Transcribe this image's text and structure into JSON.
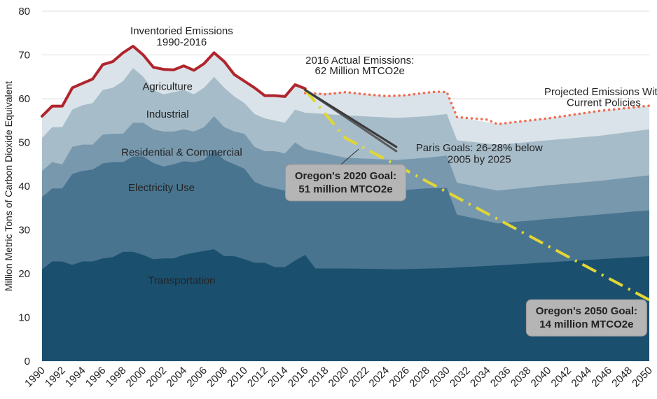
{
  "chart_data": {
    "type": "area",
    "title": "",
    "xlabel": "",
    "ylabel": "Million Metric Tons of Carbon Dioxide Equivalent",
    "xlim": [
      1990,
      2050
    ],
    "ylim": [
      0,
      80
    ],
    "yticks": [
      0,
      10,
      20,
      30,
      40,
      50,
      60,
      70,
      80
    ],
    "xticks": [
      1990,
      1992,
      1994,
      1996,
      1998,
      2000,
      2002,
      2004,
      2006,
      2008,
      2010,
      2012,
      2014,
      2016,
      2018,
      2020,
      2022,
      2024,
      2026,
      2028,
      2030,
      2032,
      2034,
      2036,
      2038,
      2040,
      2042,
      2044,
      2046,
      2048,
      2050
    ],
    "grid": true,
    "stacked_cumulative_series": [
      {
        "name": "Transportation",
        "color": "#1b4f6e",
        "x": [
          1990,
          1991,
          1992,
          1993,
          1994,
          1995,
          1996,
          1997,
          1998,
          1999,
          2000,
          2001,
          2002,
          2003,
          2004,
          2005,
          2006,
          2007,
          2008,
          2009,
          2010,
          2011,
          2012,
          2013,
          2014,
          2015,
          2016,
          2017,
          2020,
          2025,
          2030,
          2035,
          2040,
          2045,
          2050
        ],
        "values": [
          21,
          22.8,
          22.8,
          22,
          22.8,
          22.8,
          23.5,
          23.8,
          25,
          25,
          24.3,
          23.3,
          23.5,
          23.5,
          24.3,
          24.8,
          25.2,
          25.6,
          24,
          24,
          23.3,
          22.5,
          22.5,
          21.5,
          21.5,
          23,
          24.3,
          21.2,
          21.2,
          21,
          21.3,
          21.9,
          22.6,
          23.3,
          24
        ]
      },
      {
        "name": "Electricity Use",
        "color": "#48748f",
        "x": [
          1990,
          1991,
          1992,
          1993,
          1994,
          1995,
          1996,
          1997,
          1998,
          1999,
          2000,
          2001,
          2002,
          2003,
          2004,
          2005,
          2006,
          2007,
          2008,
          2009,
          2010,
          2011,
          2012,
          2013,
          2014,
          2015,
          2016,
          2020,
          2025,
          2028,
          2030,
          2031,
          2035,
          2040,
          2045,
          2050
        ],
        "values": [
          37.5,
          39.5,
          39.5,
          42.8,
          43.5,
          43.8,
          45.2,
          45.5,
          45.5,
          46.8,
          46.8,
          45.3,
          44.5,
          45,
          45.7,
          45.5,
          46,
          48.2,
          46,
          45,
          44,
          41,
          40,
          39.5,
          39,
          39.5,
          39.5,
          39.3,
          39,
          39.5,
          39.6,
          33.5,
          31.5,
          32.5,
          33.5,
          34.5
        ]
      },
      {
        "name": "Residential & Commercial",
        "color": "#7898ad",
        "x": [
          1990,
          1991,
          1992,
          1993,
          1994,
          1995,
          1996,
          1997,
          1998,
          1999,
          2000,
          2001,
          2002,
          2003,
          2004,
          2005,
          2006,
          2007,
          2008,
          2009,
          2010,
          2011,
          2012,
          2013,
          2014,
          2015,
          2016,
          2020,
          2025,
          2028,
          2030,
          2031,
          2035,
          2040,
          2045,
          2050
        ],
        "values": [
          43.5,
          45.5,
          45,
          49,
          49.5,
          49.5,
          51.8,
          52,
          52,
          54.5,
          54.5,
          53,
          52.5,
          52.5,
          53,
          52.5,
          53.5,
          56,
          53.5,
          52.5,
          52,
          49,
          48,
          48,
          47.5,
          50,
          48.5,
          46.5,
          46,
          46.5,
          47,
          40.8,
          39,
          40.2,
          41.2,
          42.5
        ]
      },
      {
        "name": "Industrial",
        "color": "#a7bcc9",
        "x": [
          1990,
          1991,
          1992,
          1993,
          1994,
          1995,
          1996,
          1997,
          1998,
          1999,
          2000,
          2001,
          2002,
          2003,
          2004,
          2005,
          2006,
          2007,
          2008,
          2009,
          2010,
          2011,
          2012,
          2013,
          2014,
          2015,
          2016,
          2020,
          2025,
          2028,
          2030,
          2031,
          2035,
          2040,
          2045,
          2050
        ],
        "values": [
          51,
          53.5,
          53.5,
          57.5,
          58.5,
          59,
          62,
          62.5,
          64,
          67,
          65,
          62,
          61,
          61.5,
          62,
          61,
          62.5,
          65,
          62.5,
          60.5,
          59,
          56.5,
          55.5,
          55,
          54.5,
          57.5,
          56.8,
          56.2,
          55.6,
          56,
          56.5,
          50.5,
          49.5,
          50.5,
          51.5,
          53
        ]
      },
      {
        "name": "Agriculture",
        "color": "#d9e3e9",
        "x": [
          1990,
          1991,
          1992,
          1993,
          1994,
          1995,
          1996,
          1997,
          1998,
          1999,
          2000,
          2001,
          2002,
          2003,
          2004,
          2005,
          2006,
          2007,
          2008,
          2009,
          2010,
          2011,
          2012,
          2013,
          2014,
          2015,
          2016,
          2017,
          2020,
          2024,
          2026,
          2028,
          2029,
          2030,
          2031,
          2035,
          2040,
          2045,
          2050
        ],
        "values": [
          56,
          58.3,
          58.3,
          62.5,
          63.5,
          64.5,
          67.8,
          68.5,
          70.5,
          72,
          70,
          67.2,
          66.7,
          66.6,
          67.5,
          66.5,
          68,
          70.5,
          68.5,
          65.5,
          64,
          62.5,
          60.7,
          60.7,
          60.5,
          63.2,
          62.3,
          61.2,
          61.5,
          60.6,
          60.8,
          61.4,
          61.6,
          61.5,
          55.8,
          54.2,
          55.5,
          57.2,
          58.4
        ]
      }
    ],
    "lines": [
      {
        "name": "Inventoried Emissions 1990-2016",
        "color": "#b0252d",
        "style": "solid",
        "x": [
          1990,
          1991,
          1992,
          1993,
          1994,
          1995,
          1996,
          1997,
          1998,
          1999,
          2000,
          2001,
          2002,
          2003,
          2004,
          2005,
          2006,
          2007,
          2008,
          2009,
          2010,
          2011,
          2012,
          2013,
          2014,
          2015,
          2016
        ],
        "values": [
          56,
          58.3,
          58.3,
          62.5,
          63.5,
          64.5,
          67.8,
          68.5,
          70.5,
          72,
          70,
          67.2,
          66.7,
          66.6,
          67.5,
          66.5,
          68,
          70.5,
          68.5,
          65.5,
          64,
          62.5,
          60.7,
          60.7,
          60.5,
          63.2,
          62.3
        ]
      },
      {
        "name": "Projected Emissions With Current Policies",
        "color": "#f26b4f",
        "style": "dotted",
        "x": [
          2016,
          2017,
          2018,
          2020,
          2022,
          2024,
          2026,
          2028,
          2029,
          2030,
          2031,
          2034,
          2035,
          2038,
          2040,
          2045,
          2050
        ],
        "values": [
          61.3,
          61.2,
          61,
          61.5,
          61,
          60.6,
          60.8,
          61.4,
          61.6,
          61.5,
          55.8,
          55.2,
          54.2,
          55,
          55.5,
          57.2,
          58.4
        ]
      },
      {
        "name": "Oregon Goal Trajectory",
        "color": "#e1d636",
        "style": "dashdot",
        "x": [
          2016,
          2020,
          2050
        ],
        "values": [
          62,
          51,
          14
        ]
      },
      {
        "name": "Paris Goals",
        "color": "#5a5a5a",
        "style": "solid",
        "x": [
          2016,
          2025
        ],
        "values": [
          62,
          48
        ]
      },
      {
        "name": "Paris Goals upper",
        "color": "#3a3a3a",
        "style": "solid",
        "x": [
          2016,
          2025
        ],
        "values": [
          62,
          49
        ]
      }
    ],
    "annotations": [
      {
        "text": "Inventoried Emissions",
        "x": 2003.8,
        "y": 75.5
      },
      {
        "text": "1990-2016",
        "x": 2003.8,
        "y": 73
      },
      {
        "text": "2016 Actual Emissions:",
        "x": 2021.4,
        "y": 68.8
      },
      {
        "text": "62 Million MTCO2e",
        "x": 2021.4,
        "y": 66.4
      },
      {
        "text": "Projected Emissions With",
        "x": 2045.5,
        "y": 61.6
      },
      {
        "text": "Current Policies",
        "x": 2045.5,
        "y": 59.1
      },
      {
        "text": "Paris Goals: 26-28% below",
        "x": 2033.2,
        "y": 48.8
      },
      {
        "text": "2005 by 2025",
        "x": 2033.2,
        "y": 46.2
      },
      {
        "text": "Agriculture",
        "x": 2002.4,
        "y": 62.8
      },
      {
        "text": "Industrial",
        "x": 2002.4,
        "y": 56.5
      },
      {
        "text": "Residential & Commercial",
        "x": 2003.8,
        "y": 47.8
      },
      {
        "text": "Electricity Use",
        "x": 2001.8,
        "y": 39.7
      },
      {
        "text": "Transportation",
        "x": 2003.8,
        "y": 18.5
      }
    ],
    "callouts": [
      {
        "lines": [
          "Oregon's 2020 Goal:",
          "51 million MTCO2e"
        ],
        "x": 2020,
        "y": 40.8
      },
      {
        "lines": [
          "Oregon's 2050 Goal:",
          "14 million MTCO2e"
        ],
        "x": 2043.8,
        "y": 9.9
      }
    ]
  }
}
